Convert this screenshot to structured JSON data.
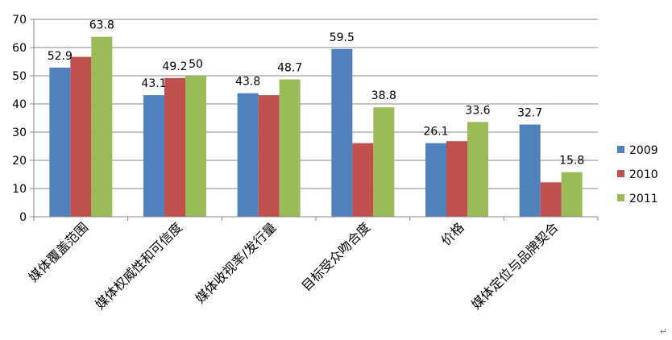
{
  "chart_data": {
    "type": "bar",
    "categories": [
      "媒体覆盖范围",
      "媒体权威性和可信度",
      "媒体收视率/发行量",
      "目标受众吻合度",
      "价格",
      "媒体定位与品牌契合"
    ],
    "series": [
      {
        "name": "2009",
        "color": "#4F81BD",
        "values": [
          52.9,
          43.1,
          43.8,
          59.5,
          26.1,
          32.7
        ],
        "labels": [
          "52.9",
          "43.1",
          "43.8",
          "59.5",
          "26.1",
          "32.7"
        ]
      },
      {
        "name": "2010",
        "color": "#C0504D",
        "values": [
          56.7,
          49.2,
          43.1,
          26.1,
          26.8,
          12.2
        ],
        "labels": [
          "",
          "49.2",
          "",
          "",
          "",
          ""
        ]
      },
      {
        "name": "2011",
        "color": "#9BBB59",
        "values": [
          63.8,
          50,
          48.7,
          38.8,
          33.6,
          15.8
        ],
        "labels": [
          "63.8",
          "50",
          "48.7",
          "38.8",
          "33.6",
          "15.8"
        ]
      }
    ],
    "title": "",
    "xlabel": "",
    "ylabel": "",
    "ylim": [
      0,
      70
    ],
    "yticks": [
      0,
      10,
      20,
      30,
      40,
      50,
      60,
      70
    ],
    "grid": true,
    "legend_position": "right"
  },
  "footer": {
    "corner_mark": "↵"
  }
}
